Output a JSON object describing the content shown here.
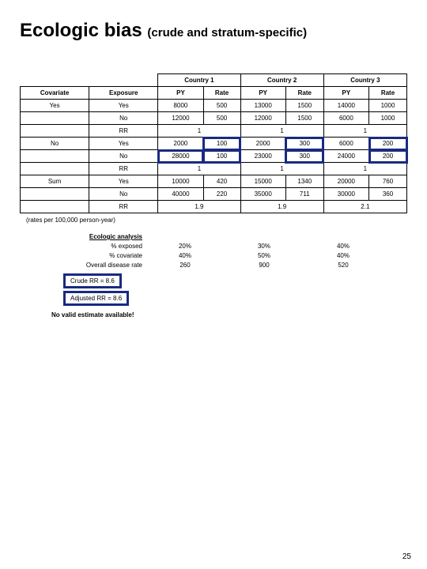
{
  "title_main": "Ecologic bias",
  "title_sub": "(crude and stratum-specific)",
  "countries": [
    "Country 1",
    "Country 2",
    "Country 3"
  ],
  "subheaders": [
    "PY",
    "Rate"
  ],
  "col_covariate": "Covariate",
  "col_exposure": "Exposure",
  "rows": [
    {
      "cov": "Yes",
      "exp": "Yes",
      "c1py": "8000",
      "c1r": "500",
      "c2py": "13000",
      "c2r": "1500",
      "c3py": "14000",
      "c3r": "1000",
      "hl": []
    },
    {
      "cov": "",
      "exp": "No",
      "c1py": "12000",
      "c1r": "500",
      "c2py": "12000",
      "c2r": "1500",
      "c3py": "6000",
      "c3r": "1000",
      "hl": []
    },
    {
      "cov": "",
      "exp": "RR",
      "c1py": "",
      "c1r": "1",
      "c2py": "",
      "c2r": "1",
      "c3py": "",
      "c3r": "1",
      "hl": [],
      "merge": true
    },
    {
      "cov": "No",
      "exp": "Yes",
      "c1py": "2000",
      "c1r": "100",
      "c2py": "2000",
      "c2r": "300",
      "c3py": "6000",
      "c3r": "200",
      "hl": [
        "c1r",
        "c2r",
        "c3r"
      ]
    },
    {
      "cov": "",
      "exp": "No",
      "c1py": "28000",
      "c1r": "100",
      "c2py": "23000",
      "c2r": "300",
      "c3py": "24000",
      "c3r": "200",
      "hl": [
        "c1py",
        "c1r",
        "c2r",
        "c3r"
      ]
    },
    {
      "cov": "",
      "exp": "RR",
      "c1py": "",
      "c1r": "1",
      "c2py": "",
      "c2r": "1",
      "c3py": "",
      "c3r": "1",
      "hl": [],
      "merge": true
    },
    {
      "cov": "Sum",
      "exp": "Yes",
      "c1py": "10000",
      "c1r": "420",
      "c2py": "15000",
      "c2r": "1340",
      "c3py": "20000",
      "c3r": "760",
      "hl": []
    },
    {
      "cov": "",
      "exp": "No",
      "c1py": "40000",
      "c1r": "220",
      "c2py": "35000",
      "c2r": "711",
      "c3py": "30000",
      "c3r": "360",
      "hl": []
    },
    {
      "cov": "",
      "exp": "RR",
      "c1py": "",
      "c1r": "1.9",
      "c2py": "",
      "c2r": "1.9",
      "c3py": "",
      "c3r": "2.1",
      "hl": [],
      "merge": true
    }
  ],
  "rates_note": "(rates per 100,000 person-year)",
  "analysis_header": "Ecologic analysis",
  "analysis": [
    {
      "label": "% exposed",
      "v1": "20%",
      "v2": "30%",
      "v3": "40%"
    },
    {
      "label": "% covariate",
      "v1": "40%",
      "v2": "50%",
      "v3": "40%"
    },
    {
      "label": "Overall disease rate",
      "v1": "260",
      "v2": "900",
      "v3": "520"
    }
  ],
  "crude": "Crude RR = 8.6",
  "adjusted": "Adjusted RR = 8.6",
  "no_valid": "No valid estimate available!",
  "page": "25",
  "highlight_color": "#1a2a80"
}
